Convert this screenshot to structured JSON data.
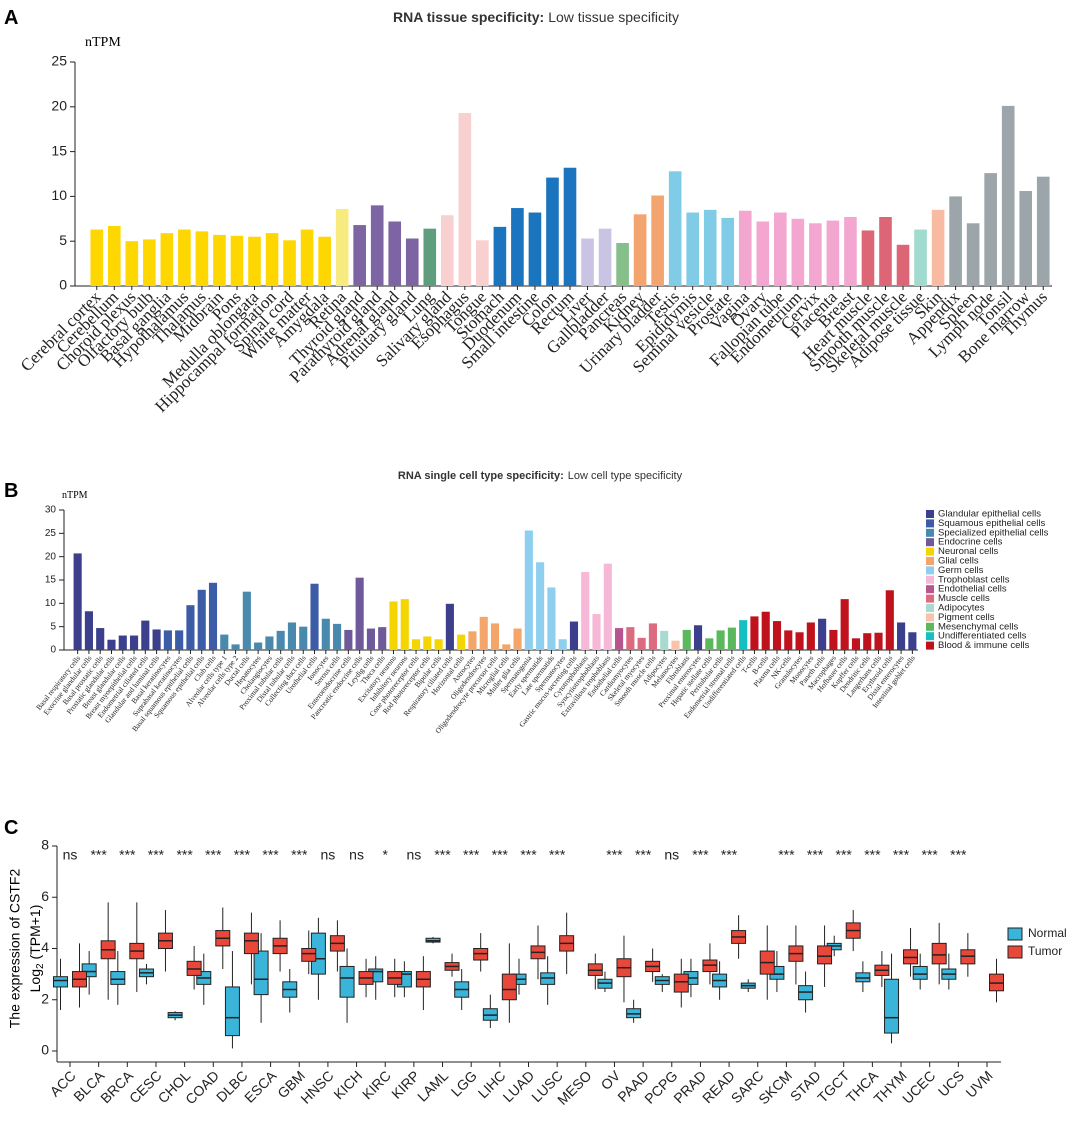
{
  "chart_data": [
    {
      "type": "bar",
      "panel": "A",
      "title": "RNA tissue specificity:",
      "subtitle": "Low tissue specificity",
      "ylabel": "nTPM",
      "categories": [
        "Cerebral cortex",
        "Cerebellum",
        "Choroid plexus",
        "Olfactory bulb",
        "Basal ganglia",
        "Hypothalamus",
        "Thalamus",
        "Midbrain",
        "Pons",
        "Medulla oblongata",
        "Hippocampal formation",
        "Spinal cord",
        "White matter",
        "Amygdala",
        "Retina",
        "Thyroid gland",
        "Parathyroid gland",
        "Adrenal gland",
        "Pituitary gland",
        "Lung",
        "Salivary gland",
        "Esophagus",
        "Tongue",
        "Stomach",
        "Duodenum",
        "Small intestine",
        "Colon",
        "Rectum",
        "Liver",
        "Gallbladder",
        "Pancreas",
        "Kidney",
        "Urinary bladder",
        "Testis",
        "Epididymis",
        "Seminal vesicle",
        "Prostate",
        "Vagina",
        "Ovary",
        "Fallopian tube",
        "Endometrium",
        "Cervix",
        "Placenta",
        "Breast",
        "Heart muscle",
        "Smooth muscle",
        "Skeletal muscle",
        "Adipose tissue",
        "Skin",
        "Appendix",
        "Spleen",
        "Lymph node",
        "Tonsil",
        "Bone marrow",
        "Thymus"
      ],
      "values": [
        6.3,
        6.7,
        5.0,
        5.2,
        5.9,
        6.3,
        6.1,
        5.7,
        5.6,
        5.5,
        5.9,
        5.1,
        6.3,
        5.5,
        8.6,
        6.8,
        9.0,
        7.2,
        5.3,
        6.4,
        7.9,
        19.3,
        5.1,
        6.6,
        8.7,
        8.2,
        12.1,
        13.2,
        5.3,
        6.4,
        4.8,
        8.0,
        10.1,
        12.8,
        8.2,
        8.5,
        7.6,
        8.4,
        7.2,
        8.2,
        7.5,
        7.0,
        7.3,
        7.7,
        6.2,
        7.7,
        4.6,
        6.3,
        8.5,
        10.0,
        7.0,
        12.6,
        20.1,
        10.6,
        12.2
      ],
      "colors": [
        "#ffd700",
        "#ffd700",
        "#ffd700",
        "#ffd700",
        "#ffd700",
        "#ffd700",
        "#ffd700",
        "#ffd700",
        "#ffd700",
        "#ffd700",
        "#ffd700",
        "#ffd700",
        "#ffd700",
        "#ffd700",
        "#f7ea7e",
        "#7d64a3",
        "#7d64a3",
        "#7d64a3",
        "#7d64a3",
        "#5f9e7d",
        "#f8d0d0",
        "#f8d0d0",
        "#f8d0d0",
        "#1b74be",
        "#1b74be",
        "#1b74be",
        "#1b74be",
        "#1b74be",
        "#c9c4e4",
        "#c9c4e4",
        "#86bf8a",
        "#f4a46e",
        "#f4a46e",
        "#80cbe6",
        "#80cbe6",
        "#80cbe6",
        "#80cbe6",
        "#f3a7d0",
        "#f3a7d0",
        "#f3a7d0",
        "#f3a7d0",
        "#f3a7d0",
        "#f3a7d0",
        "#f3a7d0",
        "#dc6676",
        "#dc6676",
        "#dc6676",
        "#a1dacf",
        "#f8bba1",
        "#9ca5a9",
        "#9ca5a9",
        "#9ca5a9",
        "#9ca5a9",
        "#9ca5a9",
        "#9ca5a9"
      ],
      "ylim": [
        0,
        25
      ],
      "yticks": [
        0,
        5,
        10,
        15,
        20,
        25
      ]
    },
    {
      "type": "bar",
      "panel": "B",
      "title": "RNA single cell type specificity:",
      "subtitle": "Low cell type specificity",
      "ylabel": "nTPM",
      "categories": [
        "Basal respiratory cells",
        "Exocrine glandular cells",
        "Basal prostatic cells",
        "Prostatic glandular cells",
        "Breast glandular cells",
        "Breast myoepithelial cells",
        "Endometrial ciliated cells",
        "Glandular and luminal cells",
        "Basal keratinocytes",
        "Suprabasal keratinocytes",
        "Basal squamous epithelial cells",
        "Squamous epithelial cells",
        "Club cells",
        "Alveolar cells type 1",
        "Alveolar cells type 2",
        "Ductal cells",
        "Hepatocytes",
        "Cholangiocytes",
        "Proximal tubular cells",
        "Distal tubular cells",
        "Collecting duct cells",
        "Urothelial cells",
        "Ionocytes",
        "Serous cells",
        "Enteroendocrine cells",
        "Pancreatic endocrine cells",
        "Leydig cells",
        "Theca cells",
        "Excitatory neurons",
        "Inhibitory neurons",
        "Cone photoreceptor cells",
        "Rod photoreceptor cells",
        "Bipolar cells",
        "Respiratory ciliated cells",
        "Horizontal cells",
        "Astrocytes",
        "Oligodendrocytes",
        "Oligodendrocyte precursor cells",
        "Microglial cells",
        "Muller glia cells",
        "Spermatogonia",
        "Early spermatids",
        "Late spermatids",
        "Spermatocytes",
        "Gastric mucus-secreting cells",
        "Cytotrophoblasts",
        "Syncytiotrophoblasts",
        "Extravillous trophoblasts",
        "Endothelial cells",
        "Cardiomyocytes",
        "Skeletal myocytes",
        "Smooth muscle cells",
        "Adipocytes",
        "Melanocytes",
        "Fibroblasts",
        "Proximal enterocytes",
        "Hepatic stellate cells",
        "Peritubular cells",
        "Endometrial stromal cells",
        "Undifferentiated cells",
        "T-cells",
        "B-cells",
        "Plasma cells",
        "NK-cells",
        "Granulocytes",
        "Monocytes",
        "Paneth cells",
        "Macrophages",
        "Hofbauer cells",
        "Kupffer cells",
        "Dendritic cells",
        "Langerhans cells",
        "Erythroid cells",
        "Distal enterocytes",
        "Intestinal goblet cells"
      ],
      "values": [
        20.7,
        8.3,
        4.7,
        2.2,
        3.1,
        3.1,
        6.3,
        4.4,
        4.2,
        4.2,
        9.6,
        12.9,
        14.4,
        3.3,
        1.2,
        12.5,
        1.6,
        2.9,
        4.1,
        5.9,
        5.0,
        14.2,
        6.7,
        5.6,
        4.3,
        15.5,
        4.6,
        4.9,
        10.4,
        10.9,
        2.3,
        2.9,
        2.3,
        9.9,
        3.3,
        4.0,
        7.1,
        5.7,
        1.2,
        4.6,
        25.6,
        18.8,
        13.4,
        2.3,
        6.1,
        16.7,
        7.7,
        18.5,
        4.7,
        4.9,
        2.6,
        5.7,
        4.1,
        2.0,
        4.3,
        5.3,
        2.5,
        4.2,
        4.8,
        6.4,
        7.2,
        8.2,
        6.2,
        4.2,
        3.8,
        5.9,
        6.7,
        4.3,
        10.9,
        2.5,
        3.6,
        3.7,
        12.8,
        5.9,
        3.8
      ],
      "colors": [
        "#3b3f8c",
        "#3b3f8c",
        "#3b3f8c",
        "#3b3f8c",
        "#3b3f8c",
        "#3b3f8c",
        "#3b3f8c",
        "#3b3f8c",
        "#3d5ca6",
        "#3d5ca6",
        "#3d5ca6",
        "#3d5ca6",
        "#3d5ca6",
        "#4a89ae",
        "#4a89ae",
        "#4a89ae",
        "#4a89ae",
        "#4a89ae",
        "#4a89ae",
        "#4a89ae",
        "#4a89ae",
        "#3d5ca6",
        "#4a89ae",
        "#4a89ae",
        "#6e5a9b",
        "#6e5a9b",
        "#6e5a9b",
        "#6e5a9b",
        "#f5d500",
        "#f5d500",
        "#f5d500",
        "#f5d500",
        "#f5d500",
        "#3b3f8c",
        "#f5d500",
        "#f3a56a",
        "#f3a56a",
        "#f3a56a",
        "#f3a56a",
        "#f3a56a",
        "#8ecff0",
        "#8ecff0",
        "#8ecff0",
        "#8ecff0",
        "#3b3f8c",
        "#f6b8d6",
        "#f6b8d6",
        "#f6b8d6",
        "#b8558f",
        "#dd6b80",
        "#dd6b80",
        "#dd6b80",
        "#a8dad0",
        "#f8c3aa",
        "#5cb85c",
        "#3b3f8c",
        "#5cb85c",
        "#5cb85c",
        "#5cb85c",
        "#16c0c0",
        "#c0121c",
        "#c0121c",
        "#c0121c",
        "#c0121c",
        "#c0121c",
        "#c0121c",
        "#3b3f8c",
        "#c0121c",
        "#c0121c",
        "#c0121c",
        "#c0121c",
        "#c0121c",
        "#c0121c",
        "#3b3f8c",
        "#3b3f8c"
      ],
      "legend": [
        {
          "name": "Glandular epithelial cells",
          "color": "#3b3f8c"
        },
        {
          "name": "Squamous epithelial cells",
          "color": "#3d5ca6"
        },
        {
          "name": "Specialized epithelial cells",
          "color": "#4a89ae"
        },
        {
          "name": "Endocrine cells",
          "color": "#6e5a9b"
        },
        {
          "name": "Neuronal cells",
          "color": "#f5d500"
        },
        {
          "name": "Glial cells",
          "color": "#f3a56a"
        },
        {
          "name": "Germ cells",
          "color": "#8ecff0"
        },
        {
          "name": "Trophoblast cells",
          "color": "#f6b8d6"
        },
        {
          "name": "Endothelial cells",
          "color": "#b8558f"
        },
        {
          "name": "Muscle cells",
          "color": "#dd6b80"
        },
        {
          "name": "Adipocytes",
          "color": "#a8dad0"
        },
        {
          "name": "Pigment cells",
          "color": "#f8c3aa"
        },
        {
          "name": "Mesenchymal cells",
          "color": "#5cb85c"
        },
        {
          "name": "Undifferentiated cells",
          "color": "#16c0c0"
        },
        {
          "name": "Blood & immune cells",
          "color": "#c0121c"
        }
      ],
      "ylim": [
        0,
        30
      ],
      "yticks": [
        0,
        5,
        10,
        15,
        20,
        25,
        30
      ]
    },
    {
      "type": "box",
      "panel": "C",
      "ylabel": "The expression of CSTF2",
      "ylabel2": {
        "base": "Log",
        "sub": "2",
        "rest": "(TPM+1)"
      },
      "categories": [
        "ACC",
        "BLCA",
        "BRCA",
        "CESC",
        "CHOL",
        "COAD",
        "DLBC",
        "ESCA",
        "GBM",
        "HNSC",
        "KICH",
        "KIRC",
        "KIRP",
        "LAML",
        "LGG",
        "LIHC",
        "LUAD",
        "LUSC",
        "MESO",
        "OV",
        "PAAD",
        "PCPG",
        "PRAD",
        "READ",
        "SARC",
        "SKCM",
        "STAD",
        "TGCT",
        "THCA",
        "THYM",
        "UCEC",
        "UCS",
        "UVM"
      ],
      "annotations": [
        "ns",
        "***",
        "***",
        "***",
        "***",
        "***",
        "***",
        "***",
        "***",
        "ns",
        "ns",
        "*",
        "ns",
        "***",
        "***",
        "***",
        "***",
        "***",
        null,
        "***",
        "***",
        "ns",
        "***",
        "***",
        null,
        "***",
        "***",
        "***",
        "***",
        "***",
        "***",
        "***",
        null
      ],
      "series": [
        {
          "name": "Normal",
          "color": "#3ab4d8",
          "values": [
            [
              1.6,
              2.5,
              2.75,
              2.9,
              3.6
            ],
            [
              2.2,
              2.9,
              3.1,
              3.4,
              3.9
            ],
            [
              1.8,
              2.6,
              2.8,
              3.1,
              3.9
            ],
            [
              2.6,
              2.9,
              3.05,
              3.2,
              3.4
            ],
            [
              1.2,
              1.3,
              1.4,
              1.5,
              1.55
            ],
            [
              1.8,
              2.6,
              2.85,
              3.1,
              3.8
            ],
            [
              0.1,
              0.6,
              1.3,
              2.5,
              3.9
            ],
            [
              1.1,
              2.2,
              2.8,
              3.9,
              4.6
            ],
            [
              1.5,
              2.1,
              2.4,
              2.7,
              3.2
            ],
            [
              2.0,
              3.0,
              3.6,
              4.6,
              5.2
            ],
            [
              1.1,
              2.1,
              2.85,
              3.3,
              4.0
            ],
            [
              2.0,
              2.7,
              3.1,
              3.2,
              3.7
            ],
            [
              2.1,
              2.5,
              3.0,
              3.1,
              3.5
            ],
            [
              4.2,
              4.25,
              4.3,
              4.4,
              4.45
            ],
            [
              1.6,
              2.1,
              2.4,
              2.7,
              3.2
            ],
            [
              0.9,
              1.2,
              1.4,
              1.65,
              2.2
            ],
            [
              2.2,
              2.6,
              2.8,
              3.0,
              3.6
            ],
            [
              1.8,
              2.6,
              2.85,
              3.05,
              3.7
            ],
            null,
            [
              2.3,
              2.45,
              2.65,
              2.8,
              3.1
            ],
            [
              1.1,
              1.3,
              1.45,
              1.65,
              2.0
            ],
            [
              2.3,
              2.6,
              2.75,
              2.9,
              3.0
            ],
            [
              2.1,
              2.6,
              2.85,
              3.1,
              3.6
            ],
            [
              2.0,
              2.5,
              2.75,
              3.0,
              3.5
            ],
            [
              2.3,
              2.45,
              2.55,
              2.65,
              2.8
            ],
            [
              2.3,
              2.8,
              3.0,
              3.3,
              3.9
            ],
            [
              1.5,
              2.0,
              2.3,
              2.55,
              3.1
            ],
            [
              3.7,
              3.95,
              4.1,
              4.2,
              4.5
            ],
            [
              2.3,
              2.7,
              2.85,
              3.05,
              3.5
            ],
            [
              0.3,
              0.7,
              1.3,
              2.8,
              3.8
            ],
            [
              2.4,
              2.8,
              3.0,
              3.3,
              3.8
            ],
            [
              2.4,
              2.8,
              3.0,
              3.2,
              3.8
            ],
            null
          ]
        },
        {
          "name": "Tumor",
          "color": "#e8473a",
          "values": [
            [
              1.7,
              2.5,
              2.8,
              3.1,
              4.2
            ],
            [
              2.0,
              3.6,
              3.95,
              4.3,
              5.8
            ],
            [
              2.3,
              3.6,
              3.9,
              4.2,
              5.8
            ],
            [
              3.1,
              4.0,
              4.3,
              4.6,
              5.5
            ],
            [
              2.4,
              2.95,
              3.2,
              3.5,
              4.1
            ],
            [
              3.2,
              4.1,
              4.4,
              4.7,
              5.6
            ],
            [
              2.6,
              3.8,
              4.3,
              4.6,
              5.4
            ],
            [
              3.1,
              3.8,
              4.1,
              4.4,
              5.1
            ],
            [
              3.0,
              3.5,
              3.8,
              4.0,
              4.7
            ],
            [
              3.1,
              3.9,
              4.2,
              4.5,
              5.1
            ],
            [
              2.1,
              2.6,
              2.85,
              3.1,
              3.6
            ],
            [
              2.1,
              2.6,
              2.85,
              3.1,
              3.6
            ],
            [
              1.6,
              2.5,
              2.8,
              3.1,
              3.7
            ],
            [
              2.9,
              3.15,
              3.3,
              3.45,
              3.8
            ],
            [
              3.1,
              3.55,
              3.8,
              4.0,
              4.6
            ],
            [
              1.1,
              2.0,
              2.4,
              3.0,
              4.2
            ],
            [
              2.8,
              3.6,
              3.85,
              4.1,
              4.9
            ],
            [
              3.0,
              3.9,
              4.2,
              4.5,
              5.4
            ],
            [
              2.4,
              2.95,
              3.15,
              3.4,
              3.8
            ],
            [
              1.9,
              2.9,
              3.25,
              3.6,
              4.5
            ],
            [
              2.7,
              3.1,
              3.3,
              3.5,
              4.0
            ],
            [
              1.7,
              2.3,
              2.7,
              3.0,
              3.6
            ],
            [
              2.6,
              3.1,
              3.35,
              3.55,
              4.2
            ],
            [
              3.6,
              4.2,
              4.45,
              4.7,
              5.3
            ],
            [
              2.0,
              3.0,
              3.45,
              3.9,
              4.9
            ],
            [
              2.6,
              3.5,
              3.8,
              4.1,
              4.9
            ],
            [
              2.5,
              3.4,
              3.7,
              4.1,
              4.9
            ],
            [
              3.9,
              4.4,
              4.7,
              5.0,
              5.5
            ],
            [
              2.5,
              2.95,
              3.15,
              3.35,
              3.9
            ],
            [
              2.9,
              3.4,
              3.65,
              3.95,
              4.8
            ],
            [
              2.6,
              3.4,
              3.75,
              4.2,
              5.0
            ],
            [
              2.9,
              3.4,
              3.7,
              3.95,
              4.6
            ],
            [
              1.9,
              2.35,
              2.65,
              3.0,
              3.6
            ]
          ]
        }
      ],
      "ylim": [
        0,
        8
      ],
      "yticks": [
        0,
        2,
        4,
        6,
        8
      ]
    }
  ]
}
